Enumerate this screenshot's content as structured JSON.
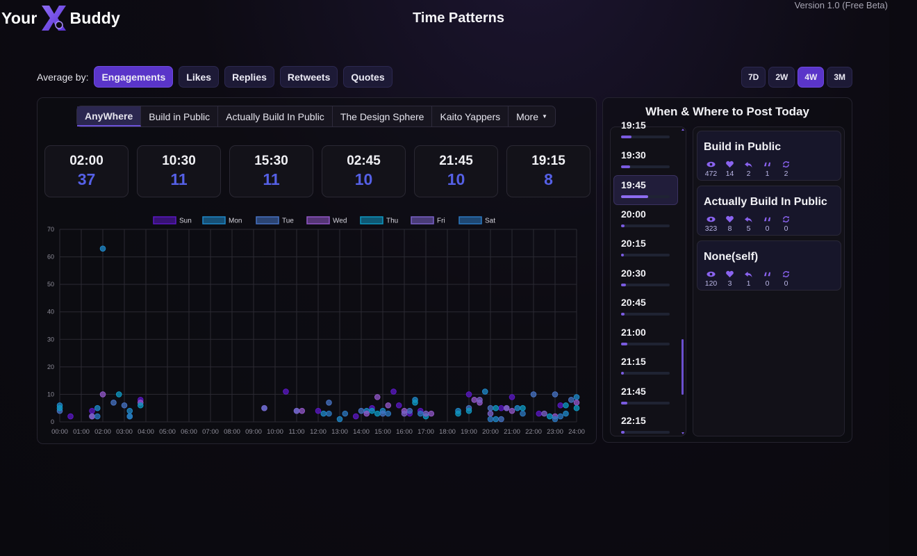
{
  "header": {
    "logo_left": "Your",
    "logo_right": "Buddy",
    "title": "Time Patterns",
    "version": "Version 1.0 (Free Beta)"
  },
  "average_by": {
    "label": "Average by:",
    "options": [
      "Engagements",
      "Likes",
      "Replies",
      "Retweets",
      "Quotes"
    ],
    "selected": "Engagements"
  },
  "ranges": {
    "options": [
      "7D",
      "2W",
      "4W",
      "3M"
    ],
    "selected": "4W"
  },
  "tabs": {
    "items": [
      "AnyWhere",
      "Build in Public",
      "Actually Build In Public",
      "The Design Sphere",
      "Kaito Yappers",
      "More"
    ],
    "selected": "AnyWhere"
  },
  "top_slots": [
    {
      "time": "02:00",
      "value": "37"
    },
    {
      "time": "10:30",
      "value": "11"
    },
    {
      "time": "15:30",
      "value": "11"
    },
    {
      "time": "02:45",
      "value": "10"
    },
    {
      "time": "21:45",
      "value": "10"
    },
    {
      "time": "19:15",
      "value": "8"
    }
  ],
  "chart_data": {
    "type": "scatter",
    "xlabel": "",
    "ylabel": "",
    "xlim": [
      0,
      24
    ],
    "ylim": [
      0,
      70
    ],
    "y_ticks": [
      0,
      10,
      20,
      30,
      40,
      50,
      60,
      70
    ],
    "x_tick_labels": [
      "00:00",
      "01:00",
      "02:00",
      "03:00",
      "04:00",
      "05:00",
      "06:00",
      "07:00",
      "08:00",
      "09:00",
      "10:00",
      "11:00",
      "12:00",
      "13:00",
      "14:00",
      "15:00",
      "16:00",
      "17:00",
      "18:00",
      "19:00",
      "20:00",
      "21:00",
      "22:00",
      "23:00",
      "24:00"
    ],
    "grid": true,
    "legend_position": "top",
    "series": [
      {
        "name": "Sun",
        "color": "#5b18c4",
        "points": [
          [
            0.5,
            2
          ],
          [
            1.5,
            4
          ],
          [
            3.75,
            8
          ],
          [
            10.5,
            11
          ],
          [
            12,
            4
          ],
          [
            13.75,
            2
          ],
          [
            14.5,
            5
          ],
          [
            15.5,
            11
          ],
          [
            15.75,
            6
          ],
          [
            16.25,
            3
          ],
          [
            16.75,
            4
          ],
          [
            19,
            10
          ],
          [
            20.5,
            5
          ],
          [
            21,
            9
          ],
          [
            22.25,
            3
          ],
          [
            23.25,
            6
          ]
        ]
      },
      {
        "name": "Mon",
        "color": "#1f88c8",
        "points": [
          [
            0,
            6
          ],
          [
            1.75,
            5
          ],
          [
            2,
            63
          ],
          [
            3.25,
            4
          ],
          [
            9.5,
            5
          ],
          [
            12.25,
            3
          ],
          [
            13,
            1
          ],
          [
            14.25,
            4
          ],
          [
            15,
            4
          ],
          [
            16.5,
            8
          ],
          [
            18.5,
            4
          ],
          [
            19.75,
            11
          ],
          [
            20.25,
            1
          ],
          [
            21.25,
            5
          ],
          [
            23.5,
            3
          ],
          [
            24,
            9
          ]
        ]
      },
      {
        "name": "Tue",
        "color": "#4672c2",
        "points": [
          [
            0,
            4
          ],
          [
            2.5,
            7
          ],
          [
            3,
            6
          ],
          [
            11,
            4
          ],
          [
            12.5,
            7
          ],
          [
            14,
            4
          ],
          [
            15,
            3
          ],
          [
            16.25,
            4
          ],
          [
            19,
            5
          ],
          [
            20,
            5
          ],
          [
            20.5,
            1
          ],
          [
            22,
            10
          ],
          [
            23,
            10
          ],
          [
            23.75,
            8
          ]
        ]
      },
      {
        "name": "Wed",
        "color": "#9257c8",
        "points": [
          [
            1.5,
            2
          ],
          [
            2,
            10
          ],
          [
            3.75,
            7
          ],
          [
            11.25,
            4
          ],
          [
            14.25,
            3
          ],
          [
            14.75,
            9
          ],
          [
            15.25,
            6
          ],
          [
            16,
            4
          ],
          [
            17.25,
            3
          ],
          [
            19.25,
            8
          ],
          [
            19.5,
            7
          ],
          [
            20.75,
            5
          ],
          [
            21,
            4
          ],
          [
            23,
            2
          ],
          [
            24,
            7
          ]
        ]
      },
      {
        "name": "Thu",
        "color": "#0f98c2",
        "points": [
          [
            0,
            5
          ],
          [
            2.75,
            10
          ],
          [
            3.25,
            2
          ],
          [
            3.75,
            6
          ],
          [
            14.5,
            4
          ],
          [
            14.75,
            3
          ],
          [
            16.5,
            7
          ],
          [
            17,
            2
          ],
          [
            18.5,
            3
          ],
          [
            19,
            4
          ],
          [
            20.25,
            5
          ],
          [
            21.5,
            5
          ],
          [
            22.75,
            2
          ],
          [
            23.5,
            6
          ],
          [
            24,
            5
          ]
        ]
      },
      {
        "name": "Fri",
        "color": "#7a62c8",
        "points": [
          [
            1.5,
            2
          ],
          [
            9.5,
            5
          ],
          [
            11,
            4
          ],
          [
            16,
            3
          ],
          [
            17,
            3
          ],
          [
            19.5,
            8
          ],
          [
            20,
            3
          ],
          [
            20.75,
            5
          ],
          [
            22.5,
            3
          ]
        ]
      },
      {
        "name": "Sat",
        "color": "#2c78c0",
        "points": [
          [
            1.75,
            2
          ],
          [
            3.25,
            2
          ],
          [
            12.5,
            3
          ],
          [
            13.25,
            3
          ],
          [
            15.25,
            3
          ],
          [
            16.75,
            3
          ],
          [
            20,
            1
          ],
          [
            21.5,
            3
          ],
          [
            23,
            1
          ],
          [
            23.25,
            2
          ]
        ]
      }
    ]
  },
  "right_panel": {
    "title": "When & Where to Post Today",
    "times": [
      {
        "time": "19:15",
        "fill": 0.22
      },
      {
        "time": "19:30",
        "fill": 0.18
      },
      {
        "time": "19:45",
        "fill": 0.55
      },
      {
        "time": "20:00",
        "fill": 0.07
      },
      {
        "time": "20:15",
        "fill": 0.06
      },
      {
        "time": "20:30",
        "fill": 0.1
      },
      {
        "time": "20:45",
        "fill": 0.07
      },
      {
        "time": "21:00",
        "fill": 0.13
      },
      {
        "time": "21:15",
        "fill": 0.06
      },
      {
        "time": "21:45",
        "fill": 0.13
      },
      {
        "time": "22:15",
        "fill": 0.07
      }
    ],
    "selected_time": "19:45",
    "places": [
      {
        "name": "Build in Public",
        "views": "472",
        "likes": "14",
        "replies": "2",
        "quotes": "1",
        "retweets": "2"
      },
      {
        "name": "Actually Build In Public",
        "views": "323",
        "likes": "8",
        "replies": "5",
        "quotes": "0",
        "retweets": "0"
      },
      {
        "name": "None(self)",
        "views": "120",
        "likes": "3",
        "replies": "1",
        "quotes": "0",
        "retweets": "0"
      }
    ],
    "accent_color": "#8a63f0"
  }
}
